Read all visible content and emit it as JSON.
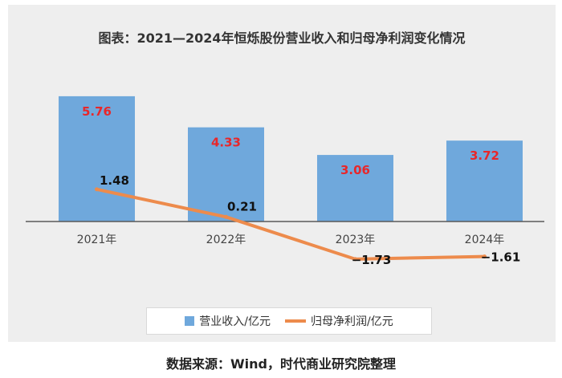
{
  "title": "图表：2021—2024年恒烁股份营业收入和归母净利润变化情况",
  "source": "数据来源：Wind，时代商业研究院整理",
  "colors": {
    "bar": "#6fa8dc",
    "line": "#ed8b4c",
    "bar_label": "#e8272a",
    "line_label": "#111111"
  },
  "chart_data": {
    "type": "bar",
    "categories": [
      "2021年",
      "2022年",
      "2023年",
      "2024年"
    ],
    "series": [
      {
        "name": "营业收入/亿元",
        "type": "bar",
        "values": [
          5.76,
          4.33,
          3.06,
          3.72
        ]
      },
      {
        "name": "归母净利润/亿元",
        "type": "line",
        "values": [
          1.48,
          0.21,
          -1.73,
          -1.61
        ]
      }
    ],
    "bar_labels": [
      "5.76",
      "4.33",
      "3.06",
      "3.72"
    ],
    "line_labels": [
      "1.48",
      "0.21",
      "−1.73",
      "−1.61"
    ],
    "legend": "bottom",
    "grid": false
  }
}
